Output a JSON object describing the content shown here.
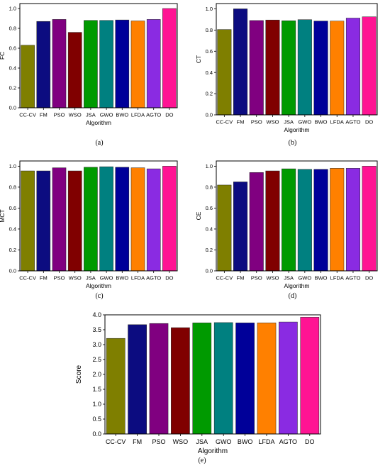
{
  "chart_data": [
    {
      "type": "bar",
      "caption": "(a)",
      "ylabel": "FC",
      "xlabel": "Algorithm",
      "ylim": [
        0,
        1.05
      ],
      "yticks": [
        "0.0",
        "0.2",
        "0.4",
        "0.6",
        "0.8",
        "1.0"
      ],
      "categories": [
        "CC-CV",
        "FM",
        "PSO",
        "WSO",
        "JSA",
        "GWO",
        "BWO",
        "LFDA",
        "AGTO",
        "DO"
      ],
      "values": [
        0.63,
        0.87,
        0.89,
        0.76,
        0.88,
        0.88,
        0.885,
        0.875,
        0.89,
        1.0
      ]
    },
    {
      "type": "bar",
      "caption": "(b)",
      "ylabel": "CT",
      "xlabel": "Algorithm",
      "ylim": [
        0,
        1.05
      ],
      "yticks": [
        "0.0",
        "0.2",
        "0.4",
        "0.6",
        "0.8",
        "1.0"
      ],
      "categories": [
        "CC-CV",
        "FM",
        "PSO",
        "WSO",
        "JSA",
        "GWO",
        "BWO",
        "LFDA",
        "AGTO",
        "DO"
      ],
      "values": [
        0.805,
        1.0,
        0.89,
        0.895,
        0.888,
        0.898,
        0.885,
        0.885,
        0.913,
        0.925
      ]
    },
    {
      "type": "bar",
      "caption": "(c)",
      "ylabel": "MCT",
      "xlabel": "Algorithm",
      "ylim": [
        0,
        1.05
      ],
      "yticks": [
        "0.0",
        "0.2",
        "0.4",
        "0.6",
        "0.8",
        "1.0"
      ],
      "categories": [
        "CC-CV",
        "FM",
        "PSO",
        "WSO",
        "JSA",
        "GWO",
        "BWO",
        "LFDA",
        "AGTO",
        "DO"
      ],
      "values": [
        0.955,
        0.955,
        0.985,
        0.955,
        0.99,
        0.995,
        0.99,
        0.985,
        0.975,
        1.0
      ]
    },
    {
      "type": "bar",
      "caption": "(d)",
      "ylabel": "CE",
      "xlabel": "Algorithm",
      "ylim": [
        0,
        1.05
      ],
      "yticks": [
        "0.0",
        "0.2",
        "0.4",
        "0.6",
        "0.8",
        "1.0"
      ],
      "categories": [
        "CC-CV",
        "FM",
        "PSO",
        "WSO",
        "JSA",
        "GWO",
        "BWO",
        "LFDA",
        "AGTO",
        "DO"
      ],
      "values": [
        0.82,
        0.85,
        0.94,
        0.955,
        0.975,
        0.97,
        0.97,
        0.98,
        0.98,
        1.0
      ]
    },
    {
      "type": "bar",
      "caption": "(e)",
      "ylabel": "Score",
      "xlabel": "Algorithm",
      "ylim": [
        0,
        4.0
      ],
      "yticks": [
        "0.0",
        "0.5",
        "1.0",
        "1.5",
        "2.0",
        "2.5",
        "3.0",
        "3.5",
        "4.0"
      ],
      "categories": [
        "CC-CV",
        "FM",
        "PSO",
        "WSO",
        "JSA",
        "GWO",
        "BWO",
        "LFDA",
        "AGTO",
        "DO"
      ],
      "values": [
        3.21,
        3.67,
        3.71,
        3.57,
        3.73,
        3.74,
        3.73,
        3.73,
        3.76,
        3.92
      ]
    }
  ],
  "colors": [
    "#7f7f00",
    "#0c0c80",
    "#800080",
    "#800000",
    "#009a00",
    "#008080",
    "#000099",
    "#ff8000",
    "#8a2be2",
    "#ff1493"
  ]
}
